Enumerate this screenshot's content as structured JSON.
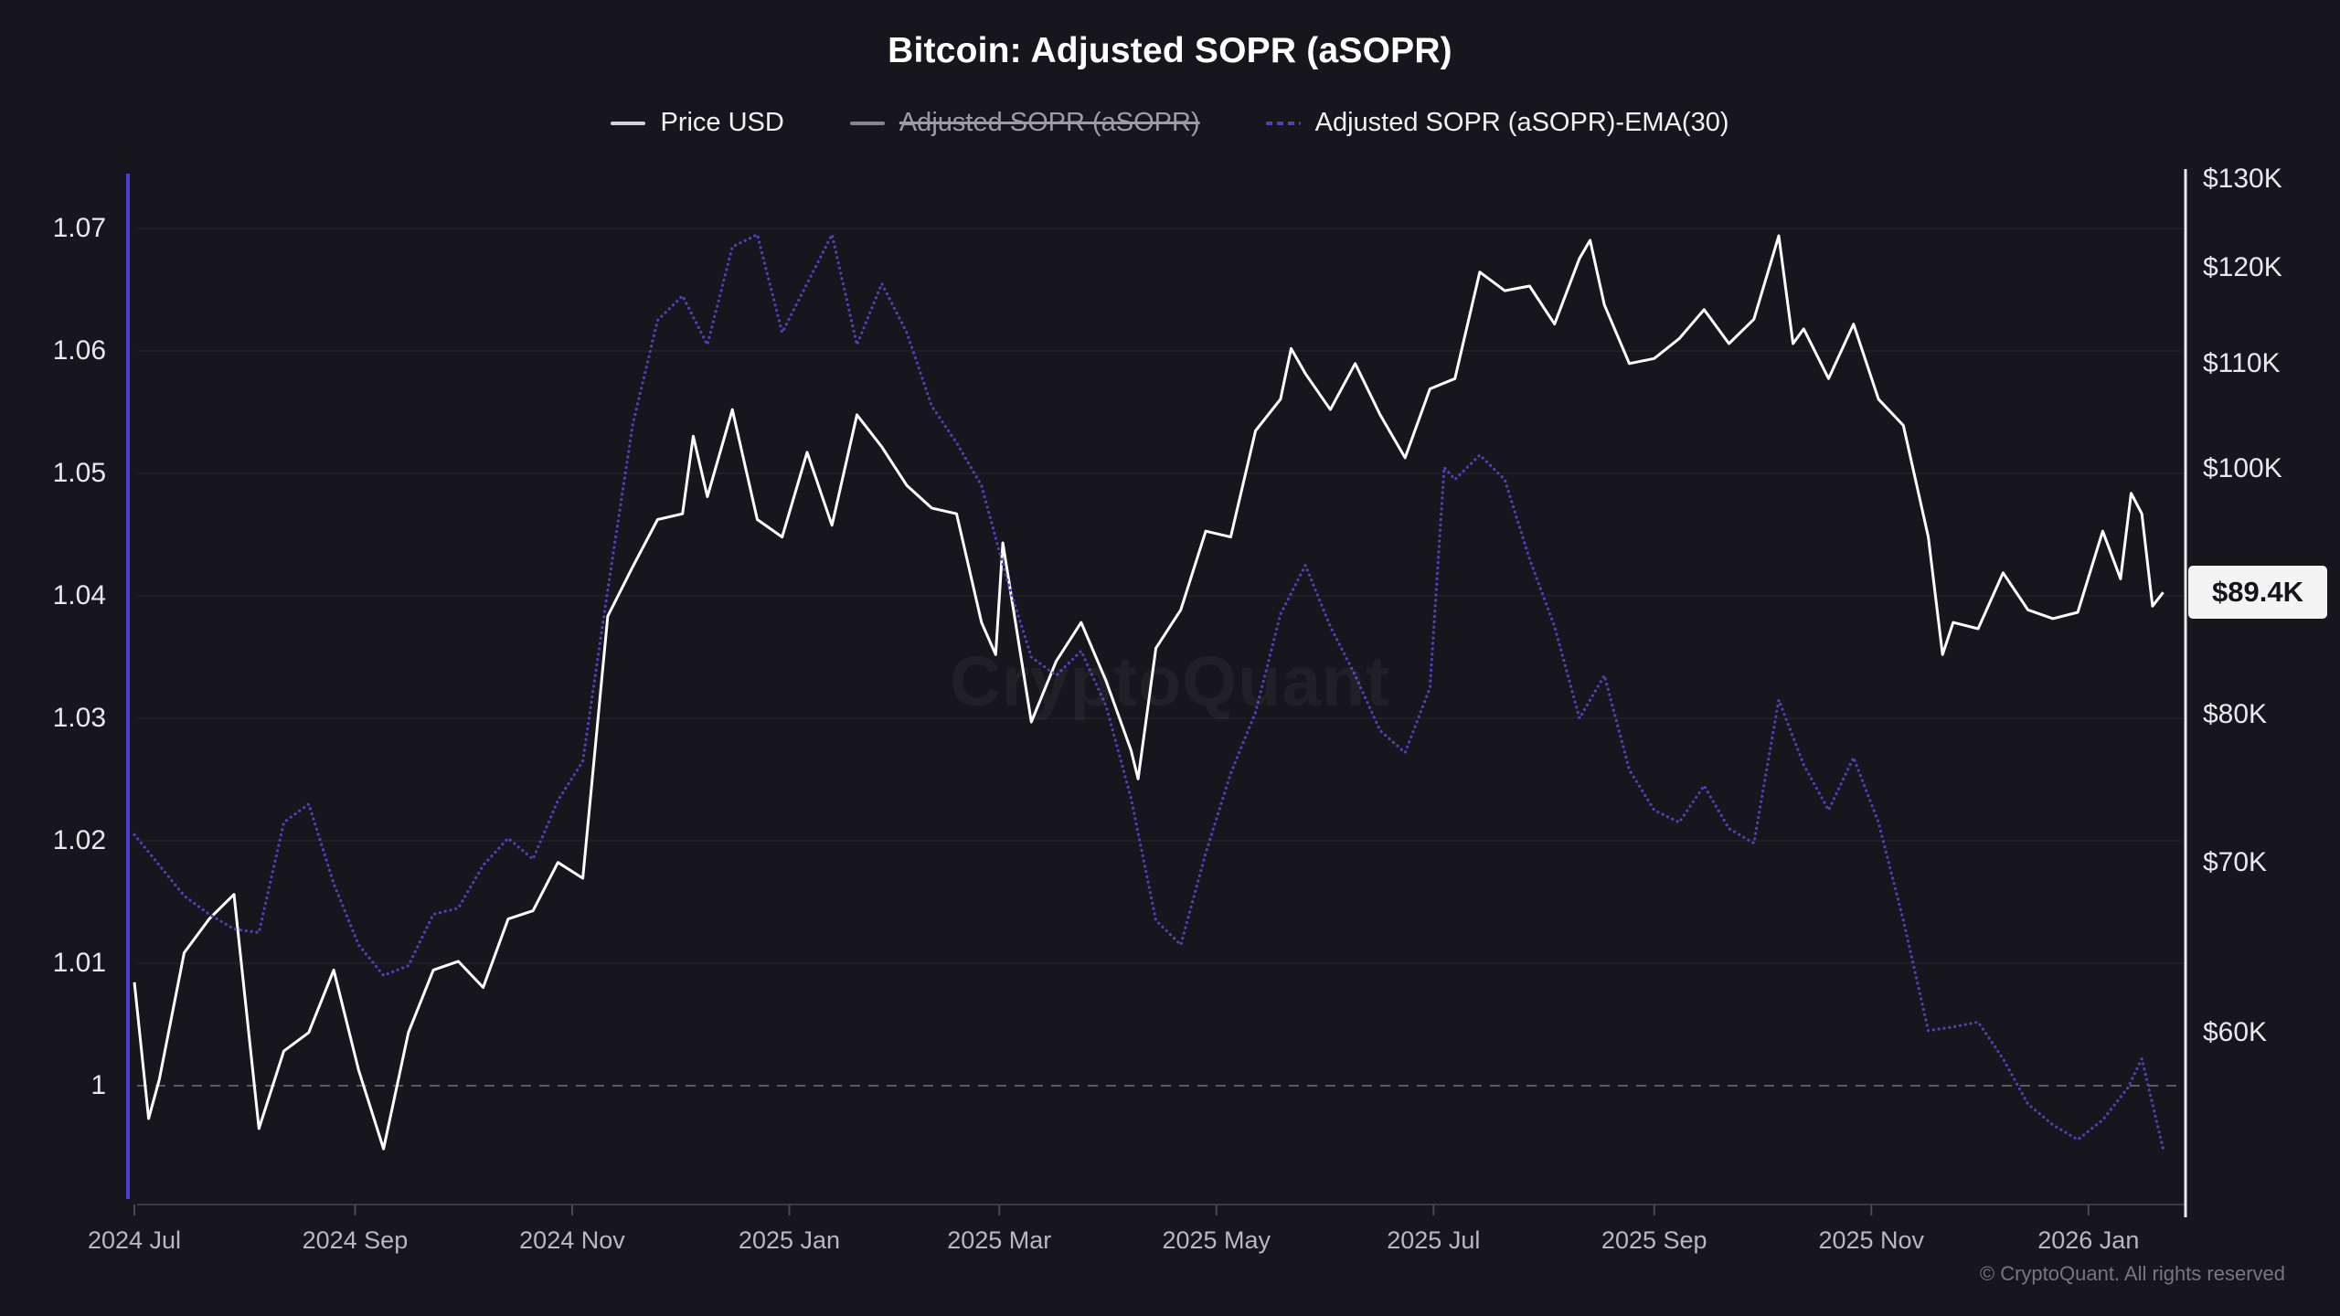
{
  "header": {
    "title": "Bitcoin: Adjusted SOPR (aSOPR)"
  },
  "legend": {
    "items": [
      {
        "id": "price-usd",
        "label": "Price USD",
        "marker": "line",
        "marker_color": "#d2d3d9",
        "text_color": "#f2f2f5",
        "disabled": false
      },
      {
        "id": "asopr",
        "label": "Adjusted SOPR (aSOPR)",
        "marker": "line",
        "marker_color": "#85868f",
        "text_color": "#9b9ca6",
        "disabled": true
      },
      {
        "id": "asopr-ema30",
        "label": "Adjusted SOPR (aSOPR)-EMA(30)",
        "marker": "dashed-line",
        "marker_color": "#4b43bb",
        "text_color": "#f2f2f5",
        "disabled": false
      }
    ]
  },
  "watermark": {
    "text": "CryptoQuant"
  },
  "footer": {
    "copyright": "© CryptoQuant. All rights reserved"
  },
  "price_badge": {
    "label": "$89.4K",
    "value_k": 89.4,
    "bg": "#f4f4f5",
    "text_color": "#15141a"
  },
  "theme": {
    "background": "#17161d",
    "gridline": "rgba(255,255,255,0.05)",
    "baseline_dash": "rgba(185,184,196,0.42)",
    "axis_line": "#3a3944",
    "tick": "#4a4952",
    "left_spine": "#4a3fd6",
    "right_spine": "#ececf0",
    "price_line": "#ffffff",
    "ema_line": "#4b43bb",
    "y_label_color": "#e9e8ee",
    "x_label_color": "#b9b8c2"
  },
  "chart_data": {
    "type": "line",
    "title": "Bitcoin: Adjusted SOPR (aSOPR)",
    "grid": "horizontal-only",
    "legend_position": "top-center",
    "x_axis": {
      "start_date": "2024-07-01",
      "end_date": "2026-01-22",
      "domain_days": [
        0,
        572
      ],
      "ticks": [
        {
          "label": "2024 Jul",
          "t": 0
        },
        {
          "label": "2024 Sep",
          "t": 62
        },
        {
          "label": "2024 Nov",
          "t": 123
        },
        {
          "label": "2025 Jan",
          "t": 184
        },
        {
          "label": "2025 Mar",
          "t": 243
        },
        {
          "label": "2025 May",
          "t": 304
        },
        {
          "label": "2025 Jul",
          "t": 365
        },
        {
          "label": "2025 Sep",
          "t": 427
        },
        {
          "label": "2025 Nov",
          "t": 488
        },
        {
          "label": "2026 Jan",
          "t": 549
        }
      ]
    },
    "left_axis": {
      "name": "Adjusted SOPR",
      "scale": "linear",
      "range": [
        0.9903,
        1.0785
      ],
      "baseline": 1.0,
      "gridline_values": [
        1.07,
        1.06,
        1.05,
        1.04,
        1.03,
        1.02,
        1.01
      ],
      "ticks": [
        {
          "label": "1.07",
          "v": 1.07
        },
        {
          "label": "1.06",
          "v": 1.06
        },
        {
          "label": "1.05",
          "v": 1.05
        },
        {
          "label": "1.04",
          "v": 1.04
        },
        {
          "label": "1.03",
          "v": 1.03
        },
        {
          "label": "1.02",
          "v": 1.02
        },
        {
          "label": "1.01",
          "v": 1.01
        },
        {
          "label": "1",
          "v": 1.0
        }
      ]
    },
    "right_axis": {
      "name": "Price USD",
      "scale": "log",
      "range_k": [
        51.5,
        130.5
      ],
      "last_price_label": "$89.4K",
      "last_price_k": 89.4,
      "ticks": [
        {
          "label": "$130K",
          "v": 130
        },
        {
          "label": "$120K",
          "v": 120
        },
        {
          "label": "$110K",
          "v": 110
        },
        {
          "label": "$100K",
          "v": 100
        },
        {
          "label": "$80K",
          "v": 80
        },
        {
          "label": "$70K",
          "v": 70
        },
        {
          "label": "$60K",
          "v": 60
        }
      ]
    },
    "series": [
      {
        "name": "Price USD",
        "axis": "right",
        "style": "solid",
        "color": "#ffffff",
        "visible": true,
        "unit": "USD thousands",
        "points": [
          [
            0,
            62.8
          ],
          [
            4,
            55.5
          ],
          [
            7,
            57.5
          ],
          [
            14,
            64.5
          ],
          [
            21,
            66.5
          ],
          [
            28,
            68.0
          ],
          [
            35,
            55.0
          ],
          [
            42,
            59.0
          ],
          [
            49,
            60.0
          ],
          [
            56,
            63.5
          ],
          [
            63,
            58.0
          ],
          [
            70,
            54.0
          ],
          [
            77,
            60.0
          ],
          [
            84,
            63.5
          ],
          [
            91,
            64.0
          ],
          [
            98,
            62.5
          ],
          [
            105,
            66.5
          ],
          [
            112,
            67.0
          ],
          [
            119,
            70.0
          ],
          [
            126,
            69.0
          ],
          [
            133,
            87.5
          ],
          [
            140,
            91.5
          ],
          [
            147,
            95.5
          ],
          [
            154,
            96.0
          ],
          [
            157,
            103.0
          ],
          [
            161,
            97.5
          ],
          [
            168,
            105.5
          ],
          [
            175,
            95.5
          ],
          [
            182,
            94.0
          ],
          [
            189,
            101.5
          ],
          [
            196,
            95.0
          ],
          [
            203,
            105.0
          ],
          [
            210,
            102.0
          ],
          [
            217,
            98.5
          ],
          [
            224,
            96.5
          ],
          [
            231,
            96.0
          ],
          [
            238,
            87.0
          ],
          [
            242,
            84.5
          ],
          [
            244,
            93.5
          ],
          [
            252,
            79.5
          ],
          [
            259,
            84.0
          ],
          [
            266,
            87.0
          ],
          [
            273,
            82.5
          ],
          [
            280,
            77.5
          ],
          [
            282,
            75.5
          ],
          [
            287,
            85.0
          ],
          [
            294,
            88.0
          ],
          [
            301,
            94.5
          ],
          [
            308,
            94.0
          ],
          [
            315,
            103.5
          ],
          [
            322,
            106.5
          ],
          [
            325,
            111.5
          ],
          [
            329,
            109.0
          ],
          [
            336,
            105.5
          ],
          [
            343,
            110.0
          ],
          [
            350,
            105.0
          ],
          [
            357,
            101.0
          ],
          [
            364,
            107.5
          ],
          [
            371,
            108.5
          ],
          [
            378,
            119.5
          ],
          [
            385,
            117.5
          ],
          [
            392,
            118.0
          ],
          [
            399,
            114.0
          ],
          [
            406,
            121.0
          ],
          [
            409,
            123.0
          ],
          [
            413,
            116.0
          ],
          [
            420,
            110.0
          ],
          [
            427,
            110.5
          ],
          [
            434,
            112.5
          ],
          [
            441,
            115.5
          ],
          [
            448,
            112.0
          ],
          [
            455,
            114.5
          ],
          [
            462,
            123.5
          ],
          [
            466,
            112.0
          ],
          [
            469,
            113.5
          ],
          [
            476,
            108.5
          ],
          [
            483,
            114.0
          ],
          [
            490,
            106.5
          ],
          [
            497,
            104.0
          ],
          [
            504,
            94.0
          ],
          [
            508,
            84.5
          ],
          [
            511,
            87.0
          ],
          [
            518,
            86.5
          ],
          [
            525,
            91.0
          ],
          [
            532,
            88.0
          ],
          [
            539,
            87.3
          ],
          [
            546,
            87.8
          ],
          [
            553,
            94.5
          ],
          [
            558,
            90.5
          ],
          [
            561,
            97.8
          ],
          [
            564,
            96.0
          ],
          [
            567,
            88.3
          ],
          [
            570,
            89.4
          ]
        ]
      },
      {
        "name": "Adjusted SOPR (aSOPR)-EMA(30)",
        "axis": "left",
        "style": "dotted",
        "color": "#4b43bb",
        "visible": true,
        "unit": "ratio",
        "points": [
          [
            0,
            1.0205
          ],
          [
            7,
            1.018
          ],
          [
            14,
            1.0155
          ],
          [
            21,
            1.014
          ],
          [
            28,
            1.0128
          ],
          [
            35,
            1.0125
          ],
          [
            42,
            1.0215
          ],
          [
            49,
            1.023
          ],
          [
            56,
            1.0165
          ],
          [
            63,
            1.0115
          ],
          [
            70,
            1.009
          ],
          [
            77,
            1.0098
          ],
          [
            84,
            1.014
          ],
          [
            91,
            1.0145
          ],
          [
            98,
            1.018
          ],
          [
            105,
            1.0202
          ],
          [
            112,
            1.0185
          ],
          [
            119,
            1.0233
          ],
          [
            126,
            1.0265
          ],
          [
            133,
            1.0405
          ],
          [
            140,
            1.054
          ],
          [
            147,
            1.0625
          ],
          [
            154,
            1.0645
          ],
          [
            161,
            1.0605
          ],
          [
            168,
            1.0685
          ],
          [
            175,
            1.0695
          ],
          [
            182,
            1.0615
          ],
          [
            189,
            1.0655
          ],
          [
            196,
            1.0695
          ],
          [
            203,
            1.0605
          ],
          [
            210,
            1.0655
          ],
          [
            217,
            1.0615
          ],
          [
            224,
            1.0555
          ],
          [
            231,
            1.0525
          ],
          [
            238,
            1.049
          ],
          [
            245,
            1.0415
          ],
          [
            252,
            1.035
          ],
          [
            259,
            1.0335
          ],
          [
            266,
            1.0355
          ],
          [
            273,
            1.031
          ],
          [
            280,
            1.0235
          ],
          [
            287,
            1.0135
          ],
          [
            294,
            1.0115
          ],
          [
            301,
            1.019
          ],
          [
            308,
            1.0255
          ],
          [
            315,
            1.0305
          ],
          [
            322,
            1.0385
          ],
          [
            329,
            1.0425
          ],
          [
            336,
            1.0375
          ],
          [
            343,
            1.0335
          ],
          [
            350,
            1.029
          ],
          [
            357,
            1.0272
          ],
          [
            364,
            1.0325
          ],
          [
            368,
            1.0505
          ],
          [
            371,
            1.0495
          ],
          [
            378,
            1.0515
          ],
          [
            385,
            1.0495
          ],
          [
            392,
            1.043
          ],
          [
            399,
            1.0375
          ],
          [
            406,
            1.03
          ],
          [
            413,
            1.0335
          ],
          [
            420,
            1.0258
          ],
          [
            427,
            1.0225
          ],
          [
            434,
            1.0215
          ],
          [
            441,
            1.0245
          ],
          [
            448,
            1.021
          ],
          [
            455,
            1.0198
          ],
          [
            462,
            1.0315
          ],
          [
            469,
            1.0262
          ],
          [
            476,
            1.0225
          ],
          [
            483,
            1.0268
          ],
          [
            490,
            1.0215
          ],
          [
            497,
            1.0135
          ],
          [
            504,
            1.0045
          ],
          [
            511,
            1.0048
          ],
          [
            518,
            1.0052
          ],
          [
            525,
            1.0022
          ],
          [
            532,
            0.9985
          ],
          [
            539,
            0.9968
          ],
          [
            546,
            0.9956
          ],
          [
            553,
            0.9972
          ],
          [
            560,
            0.9998
          ],
          [
            564,
            1.0022
          ],
          [
            570,
            0.9948
          ]
        ]
      },
      {
        "name": "Adjusted SOPR (aSOPR)",
        "axis": "left",
        "style": "solid",
        "color": "#85868f",
        "visible": false,
        "note": "series toggled off in legend (strikethrough)",
        "points": []
      }
    ]
  }
}
